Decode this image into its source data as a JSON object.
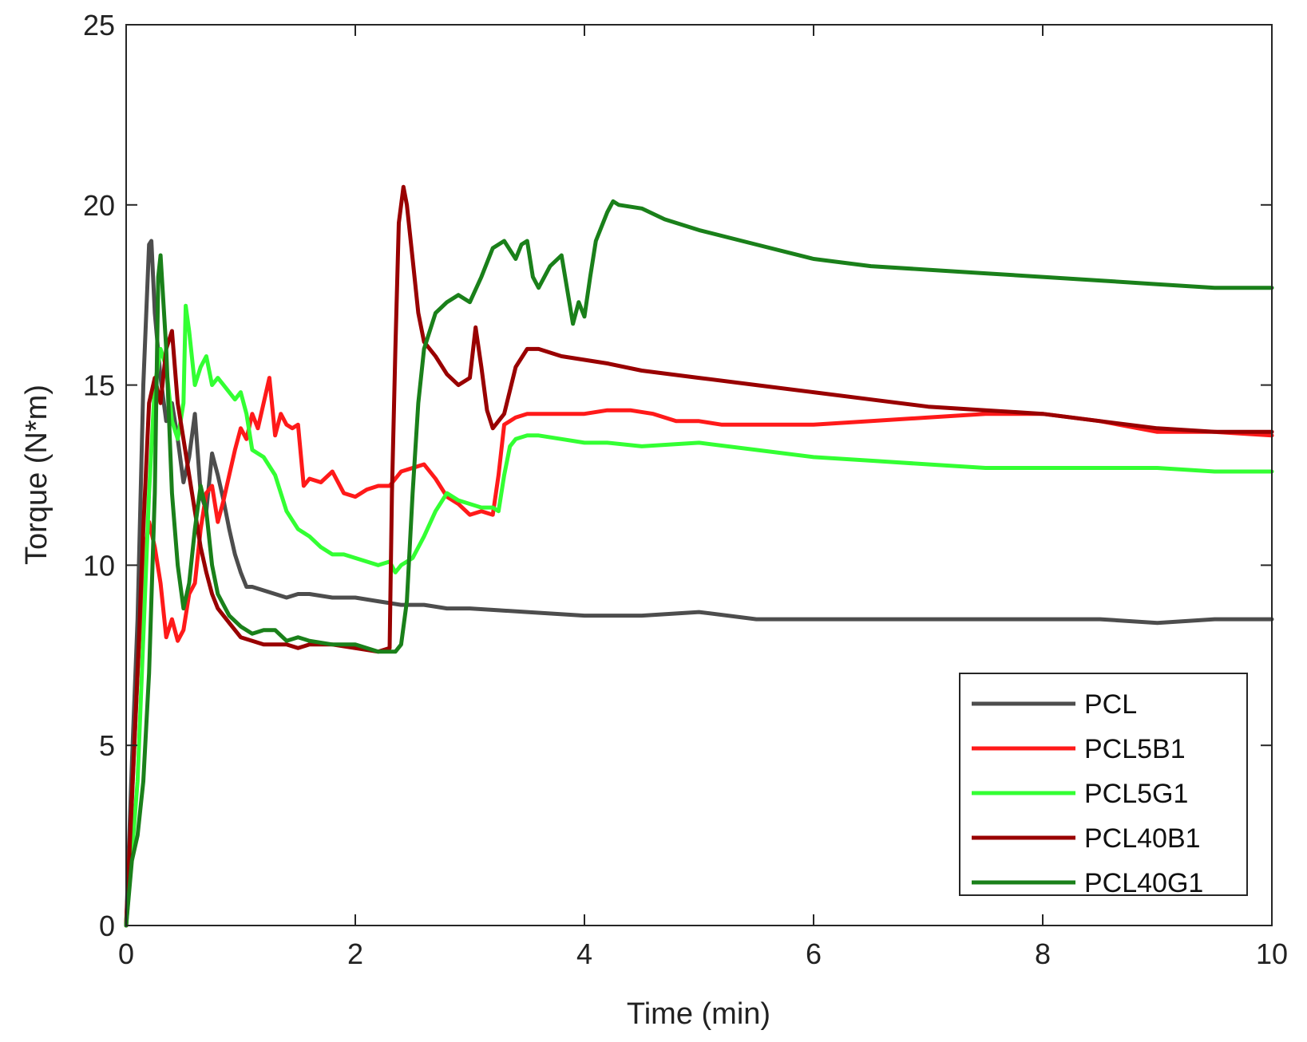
{
  "chart_data": {
    "type": "line",
    "title": "",
    "xlabel": "Time (min)",
    "ylabel": "Torque (N*m)",
    "xlim": [
      0,
      10
    ],
    "ylim": [
      0,
      25
    ],
    "xticks": [
      0,
      2,
      4,
      6,
      8,
      10
    ],
    "yticks": [
      0,
      5,
      10,
      15,
      20,
      25
    ],
    "grid": false,
    "legend_position": "bottom-right",
    "series": [
      {
        "name": "PCL",
        "color": "#4d4d4d",
        "x": [
          0,
          0.05,
          0.1,
          0.15,
          0.2,
          0.22,
          0.25,
          0.3,
          0.35,
          0.4,
          0.45,
          0.5,
          0.55,
          0.6,
          0.65,
          0.7,
          0.75,
          0.8,
          0.85,
          0.9,
          0.95,
          1.0,
          1.05,
          1.1,
          1.2,
          1.3,
          1.4,
          1.5,
          1.6,
          1.8,
          2.0,
          2.2,
          2.4,
          2.6,
          2.8,
          3.0,
          3.5,
          4.0,
          4.5,
          5.0,
          5.5,
          6.0,
          6.5,
          7.0,
          7.5,
          8.0,
          8.5,
          9.0,
          9.5,
          10.0
        ],
        "y": [
          0,
          4.5,
          8.5,
          15.0,
          18.9,
          19.0,
          17.0,
          15.2,
          14.0,
          14.5,
          13.5,
          12.3,
          13.0,
          14.2,
          12.0,
          11.5,
          13.1,
          12.5,
          11.8,
          11.0,
          10.3,
          9.8,
          9.4,
          9.4,
          9.3,
          9.2,
          9.1,
          9.2,
          9.2,
          9.1,
          9.1,
          9.0,
          8.9,
          8.9,
          8.8,
          8.8,
          8.7,
          8.6,
          8.6,
          8.7,
          8.5,
          8.5,
          8.5,
          8.5,
          8.5,
          8.5,
          8.5,
          8.4,
          8.5,
          8.5
        ]
      },
      {
        "name": "PCL5B1",
        "color": "#ff1a1a",
        "x": [
          0,
          0.05,
          0.1,
          0.15,
          0.2,
          0.25,
          0.3,
          0.35,
          0.4,
          0.45,
          0.5,
          0.55,
          0.6,
          0.65,
          0.7,
          0.75,
          0.8,
          0.85,
          0.9,
          0.95,
          1.0,
          1.05,
          1.1,
          1.15,
          1.2,
          1.25,
          1.3,
          1.35,
          1.4,
          1.45,
          1.5,
          1.55,
          1.6,
          1.7,
          1.8,
          1.9,
          2.0,
          2.1,
          2.2,
          2.3,
          2.4,
          2.5,
          2.6,
          2.7,
          2.8,
          2.9,
          3.0,
          3.1,
          3.2,
          3.25,
          3.3,
          3.35,
          3.4,
          3.5,
          3.6,
          3.8,
          4.0,
          4.2,
          4.4,
          4.6,
          4.8,
          5.0,
          5.2,
          5.5,
          6.0,
          6.5,
          7.0,
          7.5,
          8.0,
          8.5,
          9.0,
          9.5,
          10.0
        ],
        "y": [
          0,
          3.5,
          7.0,
          10.0,
          11.2,
          10.5,
          9.5,
          8.0,
          8.5,
          7.9,
          8.2,
          9.2,
          9.5,
          11.0,
          12.0,
          12.2,
          11.2,
          11.8,
          12.5,
          13.2,
          13.8,
          13.5,
          14.2,
          13.8,
          14.5,
          15.2,
          13.6,
          14.2,
          13.9,
          13.8,
          13.9,
          12.2,
          12.4,
          12.3,
          12.6,
          12.0,
          11.9,
          12.1,
          12.2,
          12.2,
          12.6,
          12.7,
          12.8,
          12.4,
          11.9,
          11.7,
          11.4,
          11.5,
          11.4,
          12.5,
          13.9,
          14.0,
          14.1,
          14.2,
          14.2,
          14.2,
          14.2,
          14.3,
          14.3,
          14.2,
          14.0,
          14.0,
          13.9,
          13.9,
          13.9,
          14.0,
          14.1,
          14.2,
          14.2,
          14.0,
          13.7,
          13.7,
          13.6
        ]
      },
      {
        "name": "PCL5G1",
        "color": "#33ff33",
        "x": [
          0,
          0.05,
          0.1,
          0.15,
          0.2,
          0.25,
          0.3,
          0.35,
          0.4,
          0.45,
          0.5,
          0.52,
          0.55,
          0.6,
          0.65,
          0.7,
          0.75,
          0.8,
          0.85,
          0.9,
          0.95,
          1.0,
          1.05,
          1.1,
          1.2,
          1.3,
          1.4,
          1.5,
          1.6,
          1.7,
          1.8,
          1.9,
          2.0,
          2.1,
          2.2,
          2.3,
          2.35,
          2.4,
          2.5,
          2.6,
          2.7,
          2.8,
          2.9,
          3.0,
          3.1,
          3.2,
          3.25,
          3.3,
          3.35,
          3.4,
          3.5,
          3.6,
          3.8,
          4.0,
          4.2,
          4.5,
          5.0,
          5.5,
          6.0,
          6.5,
          7.0,
          7.5,
          8.0,
          8.5,
          9.0,
          9.5,
          10.0
        ],
        "y": [
          0,
          2.0,
          4.0,
          8.0,
          12.0,
          15.0,
          16.0,
          15.5,
          14.0,
          13.5,
          14.5,
          17.2,
          16.5,
          15.0,
          15.5,
          15.8,
          15.0,
          15.2,
          15.0,
          14.8,
          14.6,
          14.8,
          14.2,
          13.2,
          13.0,
          12.5,
          11.5,
          11.0,
          10.8,
          10.5,
          10.3,
          10.3,
          10.2,
          10.1,
          10.0,
          10.1,
          9.8,
          10.0,
          10.2,
          10.8,
          11.5,
          12.0,
          11.8,
          11.7,
          11.6,
          11.6,
          11.5,
          12.5,
          13.3,
          13.5,
          13.6,
          13.6,
          13.5,
          13.4,
          13.4,
          13.3,
          13.4,
          13.2,
          13.0,
          12.9,
          12.8,
          12.7,
          12.7,
          12.7,
          12.7,
          12.6,
          12.6
        ]
      },
      {
        "name": "PCL40B1",
        "color": "#990000",
        "x": [
          0,
          0.05,
          0.1,
          0.15,
          0.2,
          0.25,
          0.3,
          0.35,
          0.4,
          0.45,
          0.5,
          0.55,
          0.6,
          0.65,
          0.7,
          0.75,
          0.8,
          0.9,
          1.0,
          1.1,
          1.2,
          1.3,
          1.4,
          1.5,
          1.6,
          1.8,
          2.0,
          2.2,
          2.3,
          2.32,
          2.35,
          2.38,
          2.42,
          2.45,
          2.5,
          2.55,
          2.6,
          2.7,
          2.8,
          2.9,
          3.0,
          3.05,
          3.1,
          3.15,
          3.2,
          3.3,
          3.4,
          3.5,
          3.6,
          3.8,
          4.0,
          4.2,
          4.5,
          5.0,
          5.5,
          6.0,
          6.5,
          7.0,
          7.5,
          8.0,
          8.5,
          9.0,
          9.5,
          10.0
        ],
        "y": [
          0,
          3.5,
          7.0,
          11.0,
          14.5,
          15.2,
          14.5,
          16.0,
          16.5,
          14.5,
          13.5,
          12.5,
          11.5,
          10.5,
          9.8,
          9.2,
          8.8,
          8.4,
          8.0,
          7.9,
          7.8,
          7.8,
          7.8,
          7.7,
          7.8,
          7.8,
          7.7,
          7.6,
          7.7,
          12.0,
          16.0,
          19.5,
          20.5,
          20.0,
          18.5,
          17.0,
          16.2,
          15.8,
          15.3,
          15.0,
          15.2,
          16.6,
          15.5,
          14.3,
          13.8,
          14.2,
          15.5,
          16.0,
          16.0,
          15.8,
          15.7,
          15.6,
          15.4,
          15.2,
          15.0,
          14.8,
          14.6,
          14.4,
          14.3,
          14.2,
          14.0,
          13.8,
          13.7,
          13.7
        ]
      },
      {
        "name": "PCL40G1",
        "color": "#1a801a",
        "x": [
          0,
          0.05,
          0.1,
          0.15,
          0.2,
          0.25,
          0.28,
          0.3,
          0.35,
          0.4,
          0.45,
          0.5,
          0.55,
          0.6,
          0.65,
          0.7,
          0.75,
          0.8,
          0.9,
          1.0,
          1.1,
          1.2,
          1.3,
          1.4,
          1.5,
          1.6,
          1.8,
          2.0,
          2.2,
          2.35,
          2.4,
          2.45,
          2.5,
          2.55,
          2.6,
          2.7,
          2.8,
          2.9,
          3.0,
          3.1,
          3.2,
          3.3,
          3.4,
          3.45,
          3.5,
          3.55,
          3.6,
          3.7,
          3.8,
          3.9,
          3.95,
          4.0,
          4.05,
          4.1,
          4.2,
          4.25,
          4.3,
          4.5,
          4.7,
          5.0,
          5.5,
          6.0,
          6.5,
          7.0,
          7.5,
          8.0,
          8.5,
          9.0,
          9.5,
          10.0
        ],
        "y": [
          0,
          1.8,
          2.5,
          4.0,
          7.0,
          12.0,
          18.0,
          18.6,
          16.0,
          12.0,
          10.0,
          8.8,
          9.5,
          11.0,
          12.2,
          11.5,
          10.0,
          9.2,
          8.6,
          8.3,
          8.1,
          8.2,
          8.2,
          7.9,
          8.0,
          7.9,
          7.8,
          7.8,
          7.6,
          7.6,
          7.8,
          9.0,
          12.0,
          14.5,
          16.0,
          17.0,
          17.3,
          17.5,
          17.3,
          18.0,
          18.8,
          19.0,
          18.5,
          18.9,
          19.0,
          18.0,
          17.7,
          18.3,
          18.6,
          16.7,
          17.3,
          16.9,
          18.0,
          19.0,
          19.8,
          20.1,
          20.0,
          19.9,
          19.6,
          19.3,
          18.9,
          18.5,
          18.3,
          18.2,
          18.1,
          18.0,
          17.9,
          17.8,
          17.7,
          17.7
        ]
      }
    ]
  }
}
